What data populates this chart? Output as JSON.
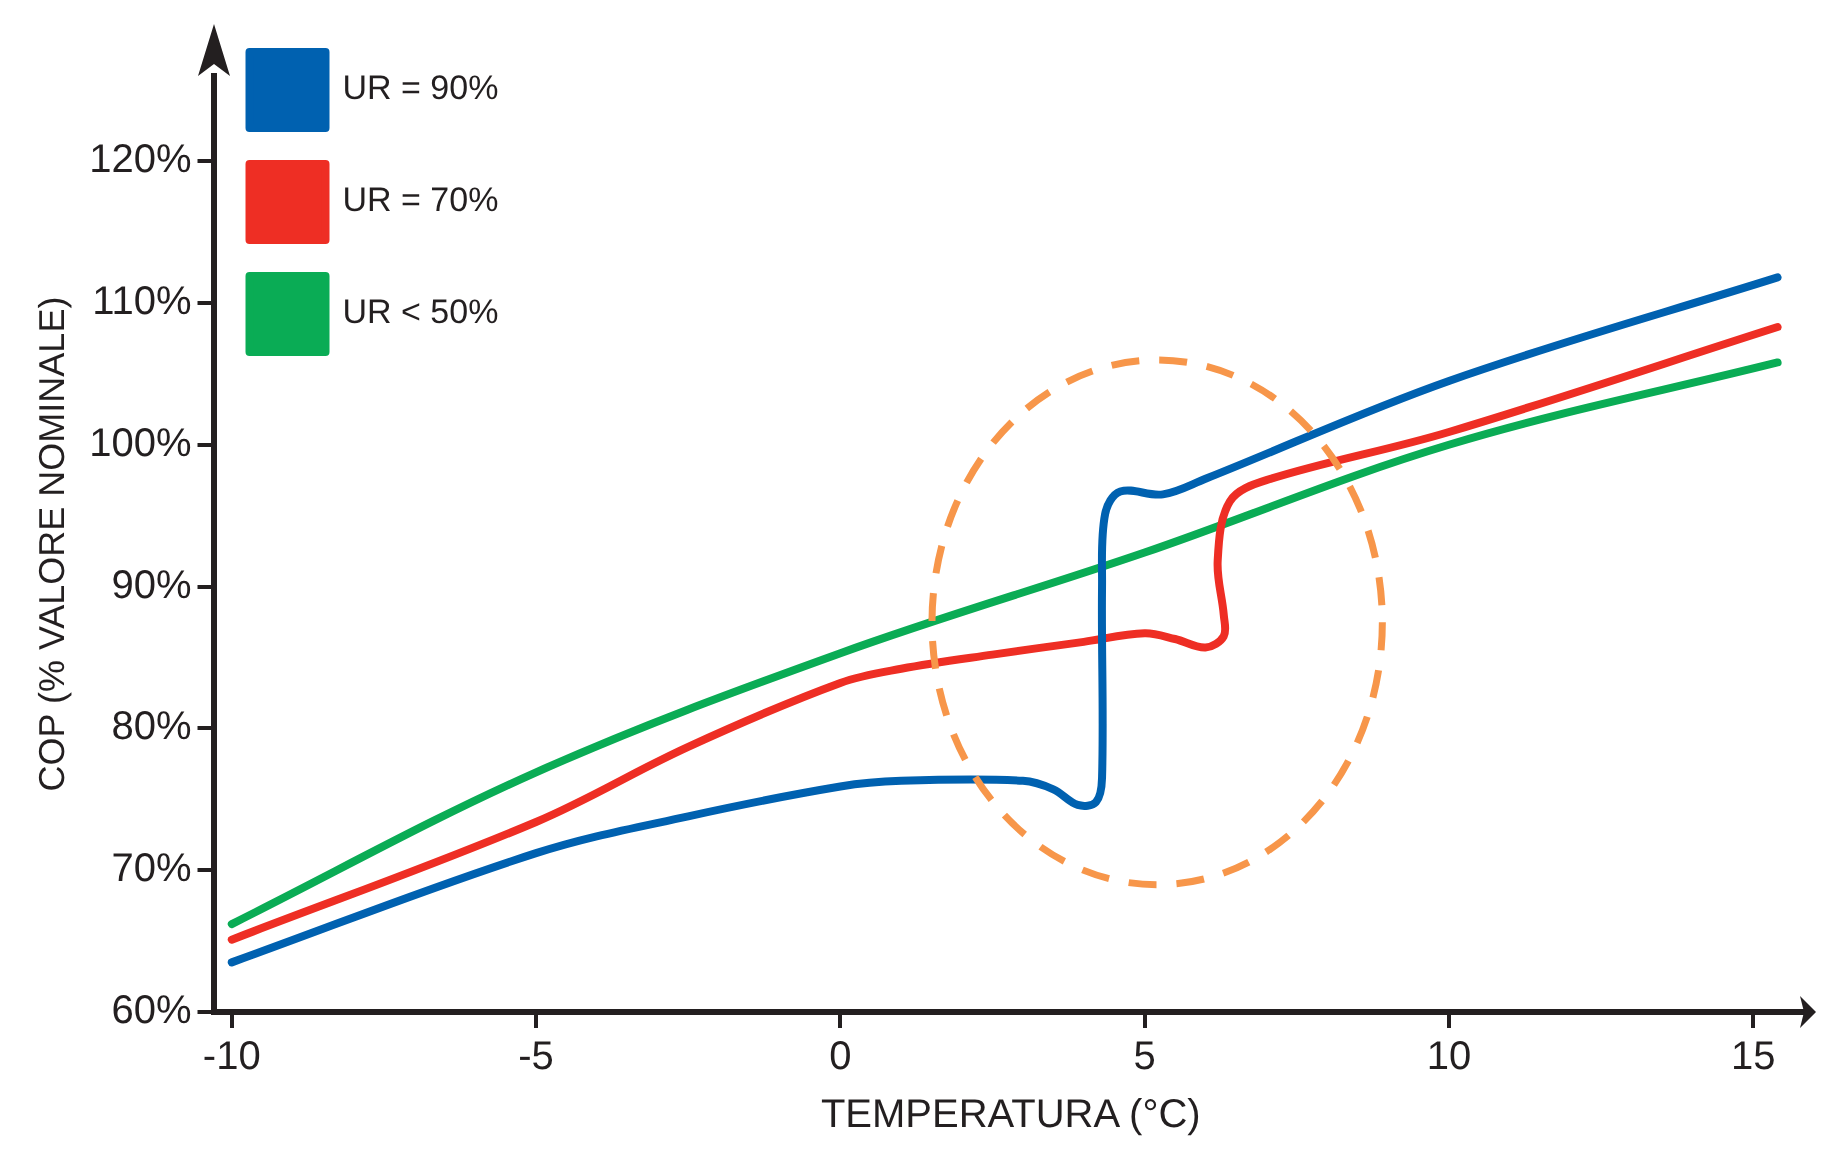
{
  "chart_data": {
    "type": "line",
    "xlabel": "TEMPERATURA (°C)",
    "ylabel": "COP (% VALORE NOMINALE)",
    "xlim": [
      -10.3,
      15.9
    ],
    "ylim": [
      60,
      126
    ],
    "xticks": [
      -10,
      -5,
      0,
      5,
      10,
      15
    ],
    "yticks": [
      {
        "value": 60,
        "label": "60%"
      },
      {
        "value": 70,
        "label": "70%"
      },
      {
        "value": 80,
        "label": "80%"
      },
      {
        "value": 90,
        "label": "90%"
      },
      {
        "value": 100,
        "label": "100%"
      },
      {
        "value": 110,
        "label": "110%"
      },
      {
        "value": 120,
        "label": "120%"
      }
    ],
    "grid": false,
    "legend": "top left",
    "marker": "none",
    "line_style": "solid",
    "series": [
      {
        "name": "UR = 90%",
        "color": "#0061b0",
        "x": [
          -10,
          -5,
          -2.5,
          0,
          1,
          3,
          3.5,
          3.9,
          4.2,
          4.3,
          4.3,
          4.35,
          4.6,
          5.3,
          6,
          10,
          15.4
        ],
        "values": [
          63.5,
          71.2,
          73.8,
          75.9,
          76.3,
          76.3,
          75.7,
          74.6,
          74.8,
          76.5,
          90,
          95.1,
          96.7,
          96.5,
          97.6,
          104.5,
          111.8
        ]
      },
      {
        "name": "UR = 70%",
        "color": "#ee2e24",
        "x": [
          -10,
          -5,
          -2.5,
          0,
          1,
          2.5,
          4,
          5,
          5.5,
          6,
          6.3,
          6.3,
          6.2,
          6.4,
          7,
          10,
          15.4
        ],
        "values": [
          65.1,
          73.4,
          78.7,
          83.2,
          84.2,
          85.2,
          86.1,
          86.7,
          86.3,
          85.7,
          86.5,
          88,
          91.8,
          96,
          97.5,
          100.9,
          108.3
        ]
      },
      {
        "name": "UR < 50%",
        "color": "#0aac55",
        "x": [
          -10,
          -5,
          0,
          5,
          10,
          15.4
        ],
        "values": [
          66.2,
          76.9,
          85.3,
          92.4,
          100,
          105.8
        ]
      }
    ]
  }
}
